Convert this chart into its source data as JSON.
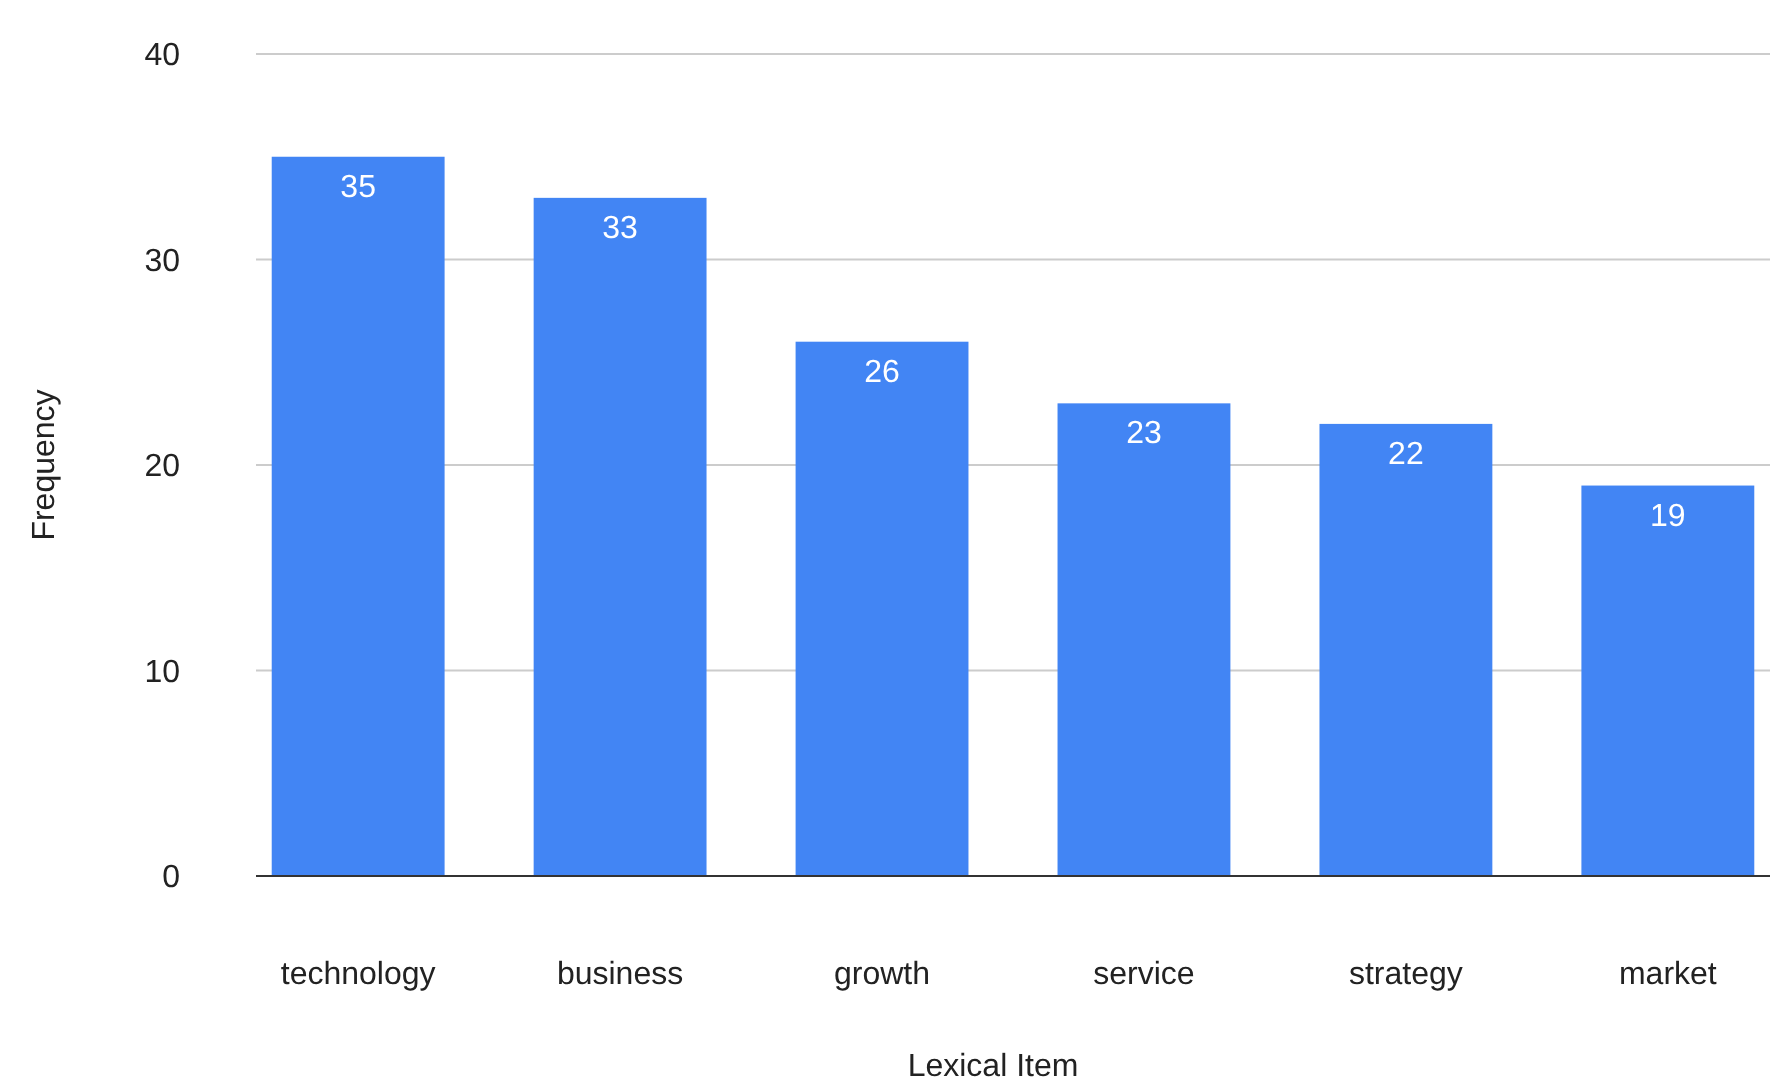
{
  "chart_data": {
    "type": "bar",
    "xlabel": "Lexical Item",
    "ylabel": "Frequency",
    "categories": [
      "technology",
      "business",
      "growth",
      "service",
      "strategy",
      "market"
    ],
    "values": [
      35,
      33,
      26,
      23,
      22,
      19
    ],
    "color": "#4285f4",
    "ylim": [
      0,
      40
    ],
    "yticks": [
      0,
      10,
      20,
      30,
      40
    ],
    "grid": "y",
    "data_labels": true
  }
}
